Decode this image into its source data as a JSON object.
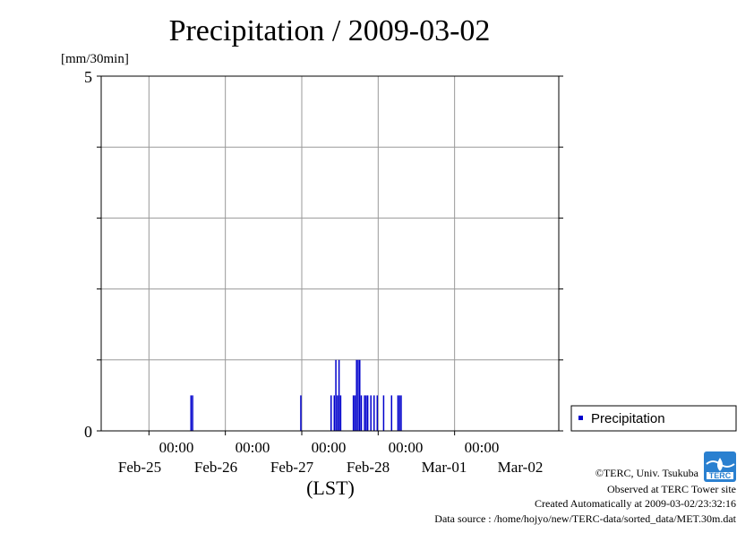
{
  "chart_data": {
    "type": "bar",
    "title": "Precipitation / 2009-03-02",
    "ylabel": "[mm/30min]",
    "xlabel": "(LST)",
    "ylim": [
      0,
      5
    ],
    "y_ticks": [
      "0",
      "5"
    ],
    "x_time_labels": [
      "00:00",
      "00:00",
      "00:00",
      "00:00",
      "00:00"
    ],
    "x_date_labels": [
      "Feb-25",
      "Feb-26",
      "Feb-27",
      "Feb-28",
      "Mar-01",
      "Mar-02"
    ],
    "grid": true,
    "legend_position": "right",
    "series": [
      {
        "name": "Precipitation",
        "color": "#0000cc",
        "x": [
          "2009-02-25 13:00",
          "2009-02-25 13:30",
          "2009-02-26 23:30",
          "2009-02-27 09:00",
          "2009-02-27 10:00",
          "2009-02-27 10:30",
          "2009-02-27 11:00",
          "2009-02-27 11:30",
          "2009-02-27 12:00",
          "2009-02-27 16:00",
          "2009-02-27 16:30",
          "2009-02-27 17:00",
          "2009-02-27 17:30",
          "2009-02-27 18:00",
          "2009-02-27 18:30",
          "2009-02-27 19:30",
          "2009-02-27 20:00",
          "2009-02-27 20:30",
          "2009-02-27 21:30",
          "2009-02-27 22:30",
          "2009-02-27 23:30",
          "2009-02-28 01:30",
          "2009-02-28 04:00",
          "2009-02-28 06:00",
          "2009-02-28 06:30",
          "2009-02-28 07:00"
        ],
        "values": [
          0.5,
          0.5,
          0.5,
          0.5,
          0.5,
          1.0,
          0.5,
          1.0,
          0.5,
          0.5,
          0.5,
          1.0,
          1.0,
          1.0,
          0.5,
          0.5,
          0.5,
          0.5,
          0.5,
          0.5,
          0.5,
          0.5,
          0.5,
          0.5,
          0.5,
          0.5
        ]
      }
    ],
    "legend": [
      {
        "label": "Precipitation",
        "color": "#0000cc"
      }
    ]
  },
  "credits": {
    "copyright": "©TERC, Univ. Tsukuba",
    "site": "Observed at TERC Tower site",
    "created": "Created Automatically at 2009-03-02/23:32:16",
    "source": "Data source : /home/hojyo/new/TERC-data/sorted_data/MET.30m.dat",
    "logo_text": "TERC"
  }
}
